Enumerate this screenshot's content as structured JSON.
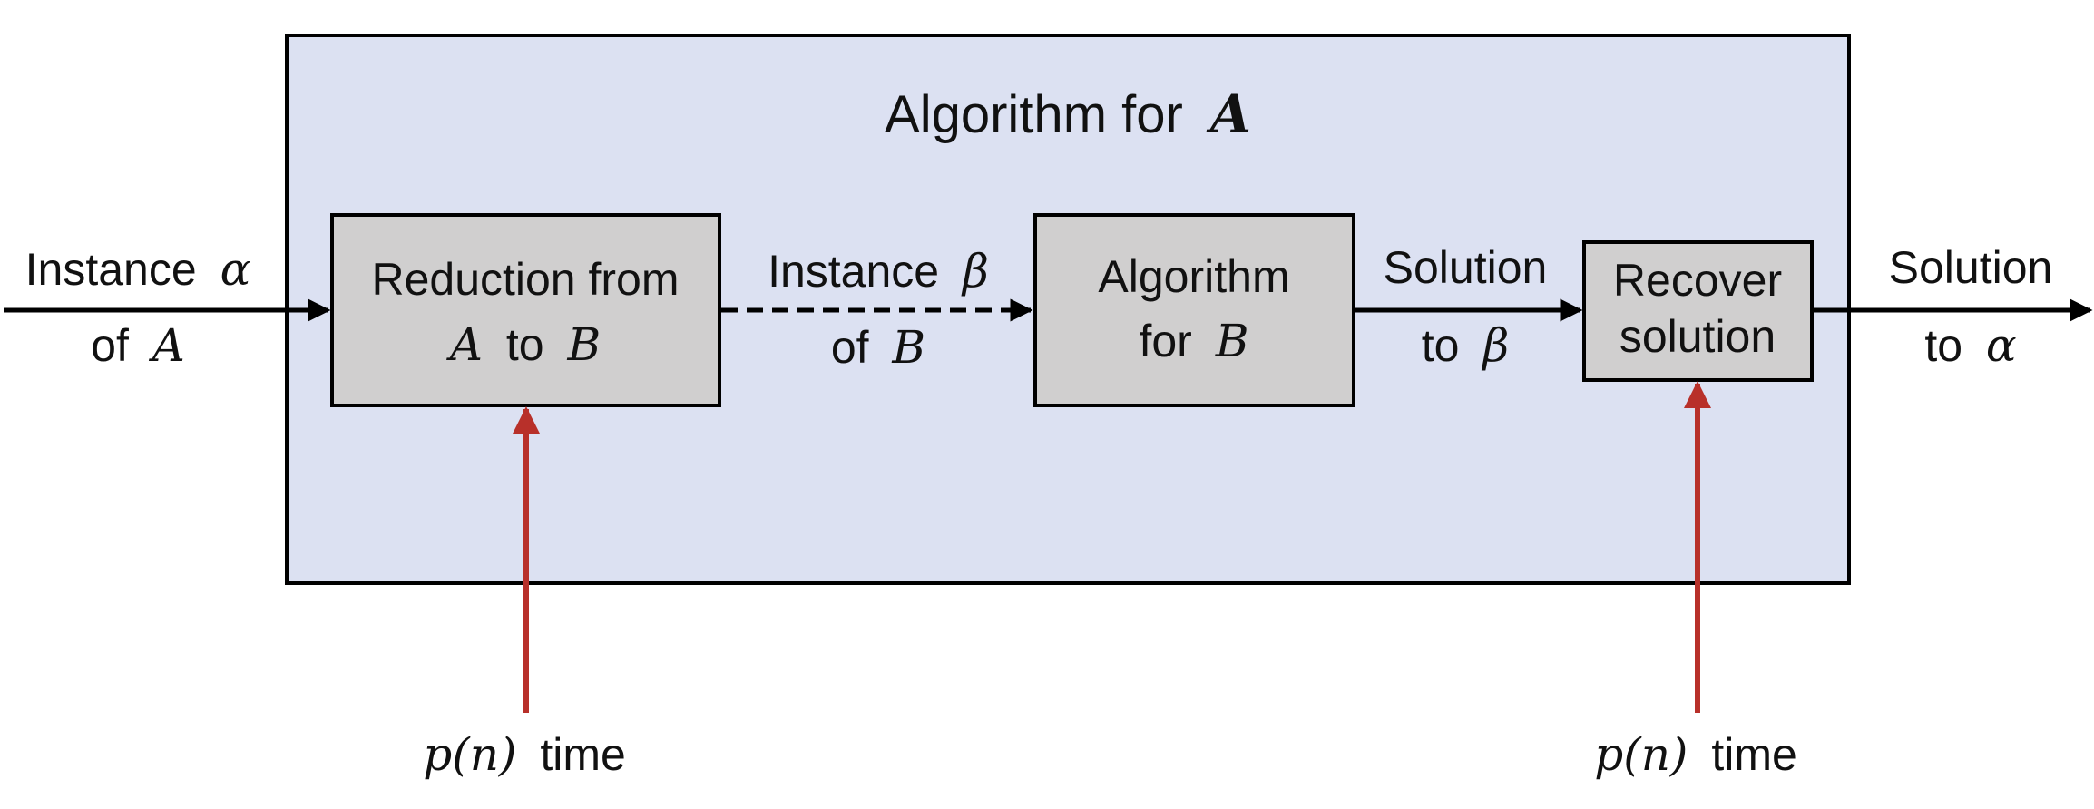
{
  "outer_box": {
    "title_prefix": "Algorithm for",
    "title_var": "A",
    "fill_color": "#dce1f2"
  },
  "input": {
    "line1_text": "Instance",
    "line1_var": "α",
    "line2_text": "of",
    "line2_var": "A"
  },
  "reduction_box": {
    "line1": "Reduction from",
    "line2_var_a": "A",
    "line2_text": "to",
    "line2_var_b": "B",
    "fill_color": "#d0cfcf"
  },
  "instance_b": {
    "line1_text": "Instance",
    "line1_var": "β",
    "line2_text": "of",
    "line2_var": "B"
  },
  "algorithm_b_box": {
    "line1": "Algorithm",
    "line2_text": "for",
    "line2_var": "B",
    "fill_color": "#d0cfcf"
  },
  "solution_b": {
    "line1": "Solution",
    "line2_text": "to",
    "line2_var": "β"
  },
  "recover_box": {
    "line1": "Recover",
    "line2": "solution",
    "fill_color": "#d0cfcf"
  },
  "output": {
    "line1": "Solution",
    "line2_text": "to",
    "line2_var": "α"
  },
  "time_left": {
    "func": "p",
    "lparen": "(",
    "arg": "n",
    "rparen": ")",
    "text": "time"
  },
  "time_right": {
    "func": "p",
    "lparen": "(",
    "arg": "n",
    "rparen": ")",
    "text": "time"
  },
  "colors": {
    "arrow_black": "#000000",
    "arrow_red": "#b8302a"
  }
}
